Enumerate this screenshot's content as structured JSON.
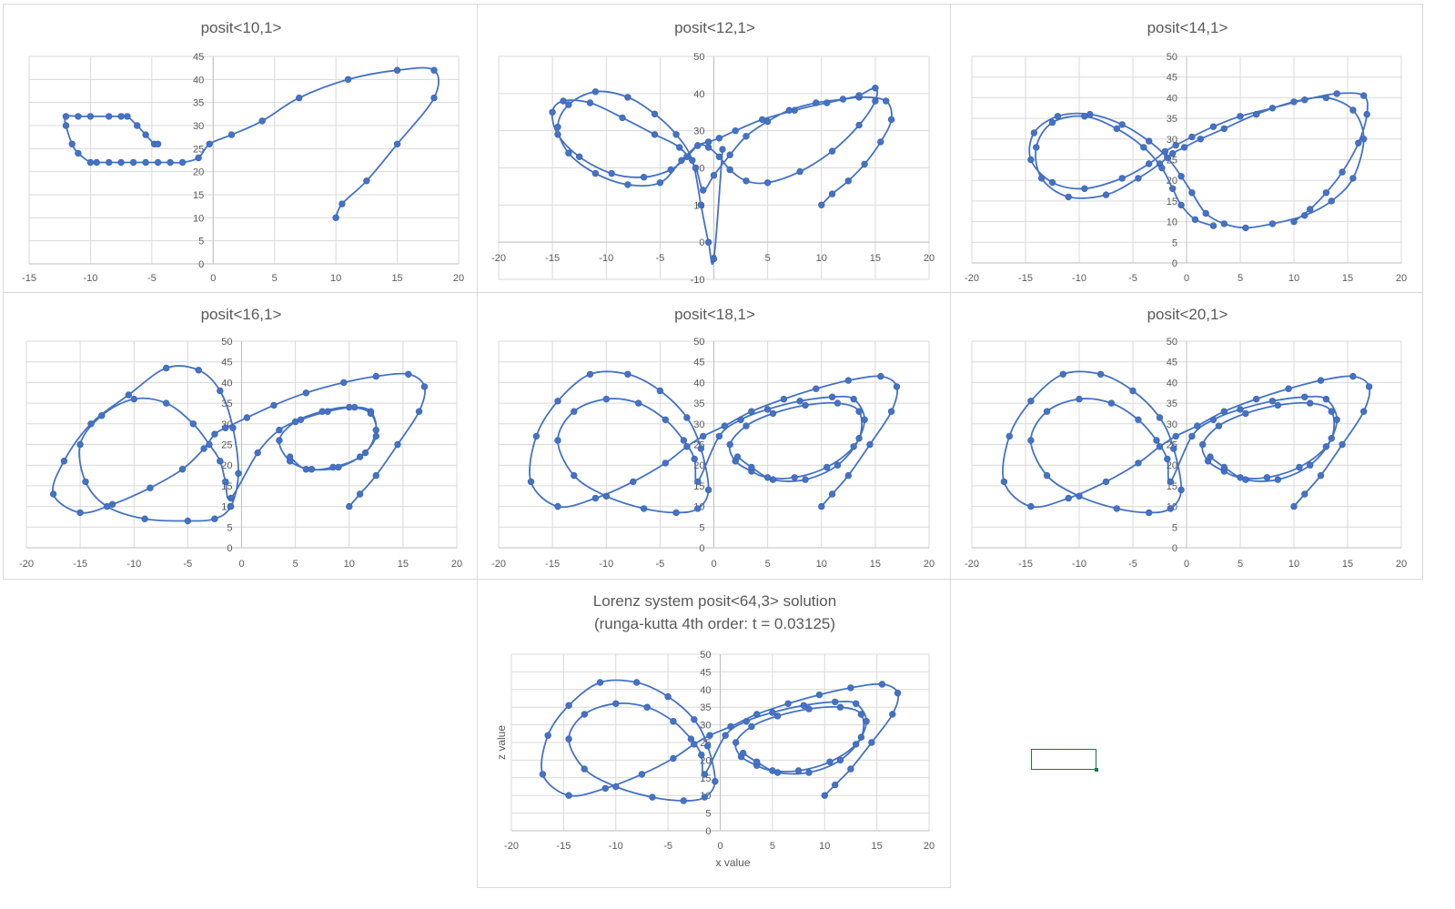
{
  "chart_data": [
    {
      "type": "scatter",
      "title": "posit<10,1>",
      "xlim": [
        -15,
        20
      ],
      "xticks": [
        -15,
        -10,
        -5,
        0,
        5,
        10,
        15,
        20
      ],
      "ylim": [
        0,
        45
      ],
      "yticks": [
        0,
        5,
        10,
        15,
        20,
        25,
        30,
        35,
        40,
        45
      ],
      "xlabel": "",
      "ylabel": "",
      "grid": true,
      "legend": "none",
      "series": [
        {
          "x": [
            10,
            10.5,
            12.5,
            15,
            18,
            18,
            15,
            11,
            7,
            4,
            1.5,
            -0.3,
            -1.2,
            -2.5,
            -3.5,
            -4.5,
            -5.5,
            -6.5,
            -7.5,
            -8.5,
            -9.5,
            -10,
            -11,
            -11.5,
            -12,
            -12,
            -11,
            -10,
            -8.5,
            -7.5,
            -7,
            -6.2,
            -5.5,
            -4.8,
            -4.5
          ],
          "z": [
            10,
            13,
            18,
            26,
            36,
            42,
            42,
            40,
            36,
            31,
            28,
            26,
            23,
            22,
            22,
            22,
            22,
            22,
            22,
            22,
            22,
            22,
            24,
            26,
            30,
            32,
            32,
            32,
            32,
            32,
            32,
            30,
            28,
            26,
            26
          ]
        }
      ]
    },
    {
      "type": "scatter",
      "title": "posit<12,1>",
      "xlim": [
        -20,
        20
      ],
      "xticks": [
        -20,
        -15,
        -10,
        -5,
        0,
        5,
        10,
        15,
        20
      ],
      "ylim": [
        -10,
        50
      ],
      "yticks": [
        -10,
        0,
        10,
        20,
        30,
        40,
        50
      ],
      "xlabel": "",
      "ylabel": "",
      "grid": true,
      "legend": "none",
      "series": [
        {
          "x": [
            10,
            11,
            12.5,
            14,
            15.5,
            16.5,
            16,
            13.5,
            10.5,
            7.5,
            4.5,
            2,
            0.5,
            -0.5,
            -1.5,
            -2.5,
            -4,
            -6.5,
            -9.5,
            -12.5,
            -14.5,
            -15,
            -14,
            -11.5,
            -8.5,
            -5.5,
            -3.2,
            -1.7,
            -1,
            0,
            1.5,
            3,
            5,
            7,
            9.5,
            12,
            13.5,
            15,
            15,
            13.5,
            11,
            8,
            5,
            3,
            1.5,
            0.5,
            -0.5,
            -1.5,
            -3,
            -5,
            -8,
            -11,
            -13.5,
            -14.5,
            -13.5,
            -11,
            -8,
            -5.5,
            -3.5,
            -2,
            -1.2,
            -0.5,
            0,
            0.8
          ],
          "z": [
            10,
            13,
            16.5,
            21,
            27,
            33,
            38,
            39,
            37.5,
            35.5,
            33,
            30,
            28,
            27,
            26,
            23,
            19.5,
            17.5,
            18.5,
            23,
            29,
            35,
            38,
            37.5,
            33.5,
            29,
            25.5,
            20,
            14,
            18,
            23.5,
            28.5,
            32.5,
            35.5,
            37.5,
            38.5,
            39.5,
            41.5,
            38,
            31.5,
            24.5,
            19,
            16,
            16.5,
            19.5,
            23,
            25.5,
            26,
            22,
            16,
            15.5,
            18.5,
            24,
            31,
            37,
            40.5,
            39,
            34.5,
            29,
            22,
            10,
            0,
            -4.5,
            25
          ]
        }
      ]
    },
    {
      "type": "scatter",
      "title": "posit<14,1>",
      "xlim": [
        -20,
        20
      ],
      "xticks": [
        -20,
        -15,
        -10,
        -5,
        0,
        5,
        10,
        15,
        20
      ],
      "ylim": [
        0,
        50
      ],
      "yticks": [
        0,
        5,
        10,
        15,
        20,
        25,
        30,
        35,
        40,
        45,
        50
      ],
      "xlabel": "",
      "ylabel": "",
      "grid": true,
      "legend": "none",
      "series": [
        {
          "x": [
            10,
            11.5,
            13,
            14.5,
            16,
            16.8,
            16.5,
            14,
            11,
            8,
            5,
            2.5,
            0.5,
            -1,
            -2,
            -3.5,
            -6,
            -9.5,
            -12.5,
            -14.5,
            -14.2,
            -12,
            -9,
            -6,
            -3.5,
            -1.8,
            -0.5,
            0.5,
            1.8,
            3.5,
            5.5,
            8,
            11,
            13.5,
            15.5,
            16.5,
            15.5,
            13,
            10,
            6.5,
            3.5,
            1.3,
            -0.2,
            -1.3,
            -2.5,
            -4.5,
            -7.5,
            -11,
            -13.5,
            -14,
            -12.5,
            -9.5,
            -6.5,
            -4,
            -2.3,
            -1.3,
            -0.5,
            0.8,
            2.5
          ],
          "z": [
            10,
            13,
            17,
            22,
            29,
            36,
            40.5,
            41,
            39.5,
            37.5,
            35.5,
            33,
            30.5,
            28.5,
            27,
            24,
            20.5,
            18,
            19.5,
            25,
            31.5,
            35.5,
            36,
            33.5,
            29.5,
            25.5,
            21,
            17,
            12,
            9.5,
            8.5,
            9.5,
            11.5,
            15,
            20.5,
            30,
            37,
            40,
            39,
            36,
            32.5,
            30,
            28,
            26.5,
            24,
            20.5,
            16.5,
            16,
            20.5,
            28,
            34,
            35.5,
            32.5,
            28,
            23,
            18,
            14,
            10.5,
            9
          ]
        }
      ]
    },
    {
      "type": "scatter",
      "title": "posit<16,1>",
      "xlim": [
        -20,
        20
      ],
      "xticks": [
        -20,
        -15,
        -10,
        -5,
        0,
        5,
        10,
        15,
        20
      ],
      "ylim": [
        0,
        50
      ],
      "yticks": [
        0,
        5,
        10,
        15,
        20,
        25,
        30,
        35,
        40,
        45,
        50
      ],
      "xlabel": "",
      "ylabel": "",
      "grid": true,
      "legend": "none",
      "series": [
        {
          "x": [
            10,
            11,
            12.5,
            14.5,
            16.5,
            17,
            15.5,
            12.5,
            9.5,
            6,
            3,
            0.5,
            -1.5,
            -2.5,
            -3.5,
            -5.5,
            -8.5,
            -12,
            -15,
            -17.5,
            -16.5,
            -14,
            -10.5,
            -7,
            -4,
            -2,
            -0.8,
            -0.3,
            -1,
            -2.5,
            -5,
            -9,
            -12.5,
            -14.5,
            -15,
            -13,
            -10,
            -7,
            -4.5,
            -3,
            -2,
            -1.5,
            -1,
            1.5,
            3.5,
            5.5,
            8,
            10.5,
            12,
            12.5,
            11.5,
            9,
            6.5,
            4.5,
            3.5,
            5,
            7.5,
            10,
            12,
            12.5,
            11,
            8.5,
            6,
            4.5
          ],
          "z": [
            10,
            13,
            17.5,
            25,
            33,
            39,
            42,
            41.5,
            40,
            37.5,
            34.5,
            31.5,
            29,
            27.5,
            24,
            19,
            14.5,
            10.5,
            8.5,
            13,
            21,
            30,
            37,
            43.5,
            43,
            38,
            29,
            18,
            10,
            7,
            6.5,
            7,
            10,
            16,
            25,
            32,
            36,
            35,
            30,
            25,
            21,
            16,
            12,
            23,
            28.5,
            31,
            33,
            34,
            33,
            28.5,
            23,
            19.5,
            19,
            21,
            26,
            30.5,
            33,
            34,
            32.5,
            27,
            22,
            19.5,
            19,
            22
          ]
        }
      ]
    },
    {
      "type": "scatter",
      "title": "posit<18,1>",
      "xlim": [
        -20,
        20
      ],
      "xticks": [
        -20,
        -15,
        -10,
        -5,
        0,
        5,
        10,
        15,
        20
      ],
      "ylim": [
        0,
        50
      ],
      "yticks": [
        0,
        5,
        10,
        15,
        20,
        25,
        30,
        35,
        40,
        45,
        50
      ],
      "xlabel": "",
      "ylabel": "",
      "grid": true,
      "legend": "none",
      "series": [
        {
          "x": [
            10,
            11,
            12.5,
            14.5,
            16.5,
            17,
            15.5,
            12.5,
            9.5,
            6.5,
            3.5,
            1,
            -1,
            -2.5,
            -4.5,
            -7.5,
            -11,
            -14.5,
            -17,
            -16.5,
            -14.5,
            -11.5,
            -8,
            -5,
            -2.5,
            -1.2,
            -0.5,
            -1.5,
            -3.5,
            -6.5,
            -10,
            -13,
            -14.5,
            -13,
            -10,
            -7,
            -4.5,
            -2.8,
            -1.8,
            -1.5,
            0.5,
            2.5,
            5,
            8,
            11,
            13,
            14,
            13,
            10.5,
            7.5,
            5,
            3.5,
            2,
            1.5,
            3,
            5.5,
            8.5,
            11.5,
            13.5,
            13.5,
            11.5,
            8.5,
            5.5,
            3.5,
            2.2
          ],
          "z": [
            10,
            13,
            17.5,
            25,
            33,
            39,
            41.5,
            40.5,
            38.5,
            36,
            33,
            29.5,
            27,
            24.5,
            20.5,
            16,
            12,
            10,
            16,
            27,
            35.5,
            42,
            42,
            38,
            31.5,
            24,
            14,
            9.5,
            8.5,
            9.5,
            12.5,
            17.5,
            26,
            33,
            36,
            35,
            31,
            26,
            21.5,
            16,
            27,
            31,
            33.5,
            35.5,
            36.5,
            36,
            31,
            24.5,
            19.5,
            17,
            17,
            18.5,
            21,
            25,
            29.5,
            32.5,
            34.5,
            35,
            33,
            26.5,
            20,
            16.5,
            16.5,
            19.5,
            22
          ]
        }
      ]
    },
    {
      "type": "scatter",
      "title": "posit<20,1>",
      "xlim": [
        -20,
        20
      ],
      "xticks": [
        -20,
        -15,
        -10,
        -5,
        0,
        5,
        10,
        15,
        20
      ],
      "ylim": [
        0,
        50
      ],
      "yticks": [
        0,
        5,
        10,
        15,
        20,
        25,
        30,
        35,
        40,
        45,
        50
      ],
      "xlabel": "",
      "ylabel": "",
      "grid": true,
      "legend": "none",
      "series": [
        {
          "x": [
            10,
            11,
            12.5,
            14.5,
            16.5,
            17,
            15.5,
            12.5,
            9.5,
            6.5,
            3.5,
            1,
            -1,
            -2.5,
            -4.5,
            -7.5,
            -11,
            -14.5,
            -17,
            -16.5,
            -14.5,
            -11.5,
            -8,
            -5,
            -2.5,
            -1.2,
            -0.5,
            -1.5,
            -3.5,
            -6.5,
            -10,
            -13,
            -14.5,
            -13,
            -10,
            -7,
            -4.5,
            -2.8,
            -1.8,
            -1.5,
            0.5,
            2.5,
            5,
            8,
            11,
            13,
            14,
            13,
            10.5,
            7.5,
            5,
            3.5,
            2,
            1.5,
            3,
            5.5,
            8.5,
            11.5,
            13.5,
            13.5,
            11.5,
            8.5,
            5.5,
            3.5,
            2.2
          ],
          "z": [
            10,
            13,
            17.5,
            25,
            33,
            39,
            41.5,
            40.5,
            38.5,
            36,
            33,
            29.5,
            27,
            24.5,
            20.5,
            16,
            12,
            10,
            16,
            27,
            35.5,
            42,
            42,
            38,
            31.5,
            24,
            14,
            9.5,
            8.5,
            9.5,
            12.5,
            17.5,
            26,
            33,
            36,
            35,
            31,
            26,
            21.5,
            16,
            27,
            31,
            33.5,
            35.5,
            36.5,
            36,
            31,
            24.5,
            19.5,
            17,
            17,
            18.5,
            21,
            25,
            29.5,
            32.5,
            34.5,
            35,
            33,
            26.5,
            20,
            16.5,
            16.5,
            19.5,
            22
          ]
        }
      ]
    },
    {
      "type": "scatter",
      "title": "Lorenz system posit<64,3> solution",
      "subtitle": "(runga-kutta 4th order: t = 0.03125)",
      "xlim": [
        -20,
        20
      ],
      "xticks": [
        -20,
        -15,
        -10,
        -5,
        0,
        5,
        10,
        15,
        20
      ],
      "ylim": [
        0,
        50
      ],
      "yticks": [
        0,
        5,
        10,
        15,
        20,
        25,
        30,
        35,
        40,
        45,
        50
      ],
      "xlabel": "x value",
      "ylabel": "z value",
      "grid": true,
      "legend": "none",
      "series": [
        {
          "x": [
            10,
            11,
            12.5,
            14.5,
            16.5,
            17,
            15.5,
            12.5,
            9.5,
            6.5,
            3.5,
            1,
            -1,
            -2.5,
            -4.5,
            -7.5,
            -11,
            -14.5,
            -17,
            -16.5,
            -14.5,
            -11.5,
            -8,
            -5,
            -2.5,
            -1.2,
            -0.5,
            -1.5,
            -3.5,
            -6.5,
            -10,
            -13,
            -14.5,
            -13,
            -10,
            -7,
            -4.5,
            -2.8,
            -1.8,
            -1.5,
            0.5,
            2.5,
            5,
            8,
            11,
            13,
            14,
            13,
            10.5,
            7.5,
            5,
            3.5,
            2,
            1.5,
            3,
            5.5,
            8.5,
            11.5,
            13.5,
            13.5,
            11.5,
            8.5,
            5.5,
            3.5,
            2.2
          ],
          "z": [
            10,
            13,
            17.5,
            25,
            33,
            39,
            41.5,
            40.5,
            38.5,
            36,
            33,
            29.5,
            27,
            24.5,
            20.5,
            16,
            12,
            10,
            16,
            27,
            35.5,
            42,
            42,
            38,
            31.5,
            24,
            14,
            9.5,
            8.5,
            9.5,
            12.5,
            17.5,
            26,
            33,
            36,
            35,
            31,
            26,
            21.5,
            16,
            27,
            31,
            33.5,
            35.5,
            36.5,
            36,
            31,
            24.5,
            19.5,
            17,
            17,
            18.5,
            21,
            25,
            29.5,
            32.5,
            34.5,
            35,
            33,
            26.5,
            20,
            16.5,
            16.5,
            19.5,
            22
          ]
        }
      ]
    }
  ]
}
